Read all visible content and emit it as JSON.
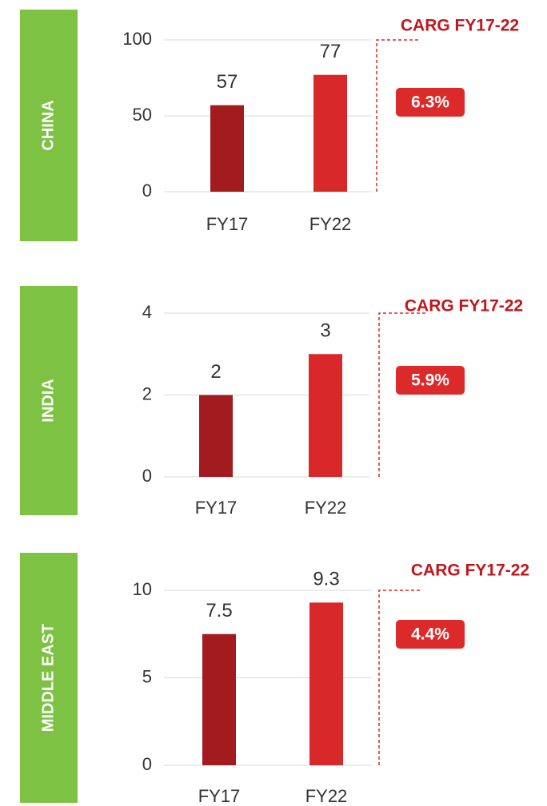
{
  "chart_data": [
    {
      "type": "bar",
      "label": "CHINA",
      "categories": [
        "FY17",
        "FY22"
      ],
      "values": [
        57,
        77
      ],
      "colors": [
        "#a21b1f",
        "#d9282a"
      ],
      "ylim": [
        0,
        100
      ],
      "yticks": [
        0,
        50,
        100
      ],
      "grid": true,
      "annotation": "CARG FY17-22",
      "badge": "6.3%"
    },
    {
      "type": "bar",
      "label": "INDIA",
      "categories": [
        "FY17",
        "FY22"
      ],
      "values": [
        2,
        3
      ],
      "colors": [
        "#a21b1f",
        "#d9282a"
      ],
      "ylim": [
        0,
        4
      ],
      "yticks": [
        0,
        2,
        4
      ],
      "grid": true,
      "annotation": "CARG FY17-22",
      "badge": "5.9%"
    },
    {
      "type": "bar",
      "label": "MIDDLE EAST",
      "categories": [
        "FY17",
        "FY22"
      ],
      "values": [
        7.5,
        9.3
      ],
      "colors": [
        "#a21b1f",
        "#d9282a"
      ],
      "ylim": [
        0,
        10
      ],
      "yticks": [
        0,
        5,
        10
      ],
      "grid": true,
      "annotation": "CARG FY17-22",
      "badge": "4.4%"
    }
  ]
}
